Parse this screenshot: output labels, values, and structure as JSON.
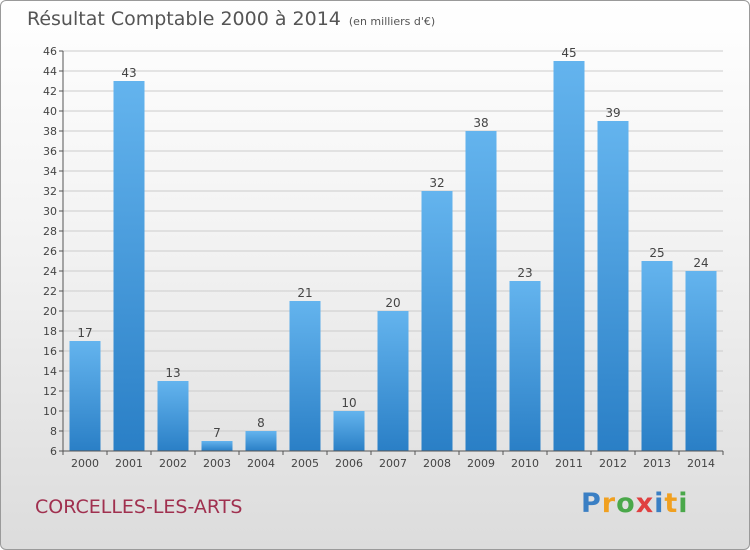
{
  "title": "Résultat Comptable 2000 à 2014",
  "subtitle": "(en milliers d'€)",
  "commune": "CORCELLES-LES-ARTS",
  "logo": {
    "text": "Proxiti",
    "letters": [
      {
        "ch": "P",
        "color": "#3a7fc4"
      },
      {
        "ch": "r",
        "color": "#f0a020"
      },
      {
        "ch": "o",
        "color": "#4aa84a"
      },
      {
        "ch": "x",
        "color": "#e04040"
      },
      {
        "ch": "i",
        "color": "#3a7fc4"
      },
      {
        "ch": "t",
        "color": "#f0a020"
      },
      {
        "ch": "i",
        "color": "#4aa84a"
      }
    ]
  },
  "colors": {
    "bar_light": "#64b4ee",
    "bar_dark": "#2a7fc6",
    "grid": "#cccccc",
    "axis": "#555555",
    "text": "#444444"
  },
  "chart_data": {
    "type": "bar",
    "title": "Résultat Comptable 2000 à 2014",
    "subtitle": "(en milliers d'€)",
    "xlabel": "",
    "ylabel": "",
    "categories": [
      "2000",
      "2001",
      "2002",
      "2003",
      "2004",
      "2005",
      "2006",
      "2007",
      "2008",
      "2009",
      "2010",
      "2011",
      "2012",
      "2013",
      "2014"
    ],
    "values": [
      17,
      43,
      13,
      7,
      8,
      21,
      10,
      20,
      32,
      38,
      23,
      45,
      39,
      25,
      24
    ],
    "ylim": [
      6,
      46
    ],
    "yticks": [
      6,
      8,
      10,
      12,
      14,
      16,
      18,
      20,
      22,
      24,
      26,
      28,
      30,
      32,
      34,
      36,
      38,
      40,
      42,
      44,
      46
    ],
    "grid": true,
    "legend": "none"
  }
}
